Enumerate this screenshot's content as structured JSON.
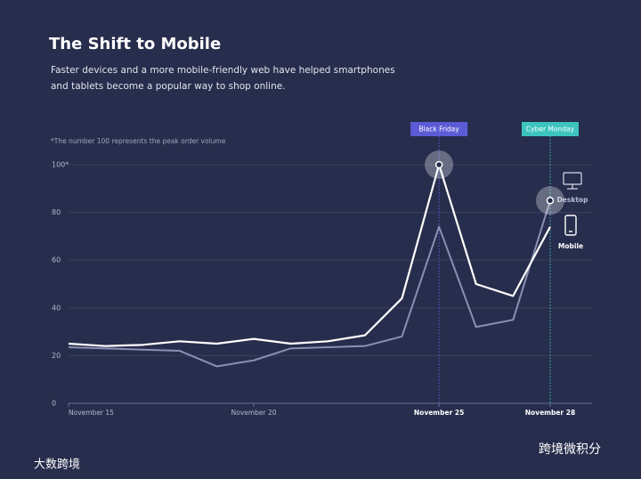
{
  "chart_data": {
    "type": "line",
    "title": "The Shift to Mobile",
    "subtitle": [
      "Faster devices and a more mobile-friendly web have helped smartphones",
      "and tablets become a popular way to shop online."
    ],
    "note": "*The number 100 represents the peak order volume",
    "x": [
      15,
      16,
      17,
      18,
      19,
      20,
      21,
      22,
      23,
      24,
      25,
      26,
      27,
      28
    ],
    "series": [
      {
        "name": "Desktop",
        "color": "#8a90b2",
        "values": [
          23.5,
          23,
          22.5,
          22,
          15.5,
          18,
          23,
          23.5,
          24,
          28,
          74,
          32,
          35,
          85
        ]
      },
      {
        "name": "Mobile",
        "color": "#ffffff",
        "values": [
          25,
          24,
          24.5,
          26,
          25,
          27,
          25,
          26,
          28.5,
          44,
          100,
          50,
          45,
          74
        ]
      }
    ],
    "xlim": [
      15,
      29.13
    ],
    "xticks": [
      {
        "value": 15,
        "label": "November 15"
      },
      {
        "value": 20,
        "label": "November 20"
      },
      {
        "value": 25,
        "label": "November 25"
      },
      {
        "value": 28,
        "label": "November 28"
      }
    ],
    "ylim": [
      0,
      100
    ],
    "yticks": [
      0,
      20,
      40,
      60,
      80,
      {
        "value": 100,
        "label": "100*"
      }
    ],
    "grid": true,
    "annotations": [
      {
        "text": "Black Friday",
        "x": 25,
        "color": "#5b5bd6",
        "series": 1
      },
      {
        "text": "Cyber Monday",
        "x": 28,
        "color": "#3cc4be",
        "series": 0
      }
    ]
  },
  "watermarks": [
    "大数跨境",
    "跨境微积分"
  ]
}
